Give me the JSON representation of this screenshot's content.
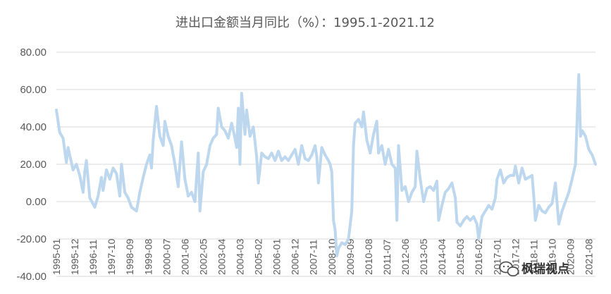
{
  "chart_data": {
    "type": "line",
    "title": "进出口金额当月同比（%）：1995.1-2021.12",
    "xlabel": "",
    "ylabel": "",
    "ylim": [
      -40,
      80
    ],
    "y_ticks": [
      "80.00",
      "60.00",
      "40.00",
      "20.00",
      "0.00",
      "-20.00",
      "-40.00"
    ],
    "x_tick_labels": [
      "1995-01",
      "1995-12",
      "1996-11",
      "1997-10",
      "1998-09",
      "1999-08",
      "2000-07",
      "2001-06",
      "2002-05",
      "2003-04",
      "2004-03",
      "2005-02",
      "2006-01",
      "2006-12",
      "2007-11",
      "2008-10",
      "2009-09",
      "2010-08",
      "2011-07",
      "2012-06",
      "2013-05",
      "2014-04",
      "2015-03",
      "2016-02",
      "2017-01",
      "2017-12",
      "2018-11",
      "2019-10",
      "2020-09",
      "2021-08"
    ],
    "x_start": "1995-01",
    "x_end": "2021-12",
    "grid": "horizontal",
    "legend": "none",
    "series": [
      {
        "name": "",
        "color": "#bdd7ee",
        "points": [
          [
            "1995-01",
            49
          ],
          [
            "1995-03",
            37
          ],
          [
            "1995-05",
            34
          ],
          [
            "1995-07",
            21
          ],
          [
            "1995-08",
            29
          ],
          [
            "1995-09",
            25
          ],
          [
            "1995-11",
            17
          ],
          [
            "1996-01",
            20
          ],
          [
            "1996-03",
            14
          ],
          [
            "1996-05",
            5
          ],
          [
            "1996-06",
            16
          ],
          [
            "1996-07",
            22
          ],
          [
            "1996-09",
            2
          ],
          [
            "1996-12",
            -3
          ],
          [
            "1997-02",
            3
          ],
          [
            "1997-04",
            13
          ],
          [
            "1997-05",
            6
          ],
          [
            "1997-07",
            17
          ],
          [
            "1997-09",
            12
          ],
          [
            "1997-11",
            18
          ],
          [
            "1998-01",
            15
          ],
          [
            "1998-03",
            3
          ],
          [
            "1998-04",
            20
          ],
          [
            "1998-06",
            5
          ],
          [
            "1998-08",
            2
          ],
          [
            "1998-10",
            -3
          ],
          [
            "1999-01",
            -5
          ],
          [
            "1999-03",
            5
          ],
          [
            "1999-05",
            13
          ],
          [
            "1999-07",
            20
          ],
          [
            "1999-09",
            25
          ],
          [
            "1999-10",
            18
          ],
          [
            "1999-11",
            33
          ],
          [
            "2000-01",
            51
          ],
          [
            "2000-03",
            35
          ],
          [
            "2000-05",
            30
          ],
          [
            "2000-06",
            43
          ],
          [
            "2000-08",
            35
          ],
          [
            "2000-10",
            30
          ],
          [
            "2000-12",
            20
          ],
          [
            "2001-02",
            8
          ],
          [
            "2001-04",
            32
          ],
          [
            "2001-06",
            12
          ],
          [
            "2001-08",
            3
          ],
          [
            "2001-10",
            5
          ],
          [
            "2001-12",
            0
          ],
          [
            "2002-02",
            26
          ],
          [
            "2002-03",
            -5
          ],
          [
            "2002-05",
            16
          ],
          [
            "2002-07",
            20
          ],
          [
            "2002-09",
            30
          ],
          [
            "2002-11",
            34
          ],
          [
            "2003-01",
            36
          ],
          [
            "2003-02",
            50
          ],
          [
            "2003-04",
            40
          ],
          [
            "2003-06",
            38
          ],
          [
            "2003-08",
            34
          ],
          [
            "2003-10",
            42
          ],
          [
            "2003-12",
            34
          ],
          [
            "2004-01",
            29
          ],
          [
            "2004-02",
            50
          ],
          [
            "2004-03",
            20
          ],
          [
            "2004-04",
            58
          ],
          [
            "2004-06",
            36
          ],
          [
            "2004-07",
            49
          ],
          [
            "2004-09",
            35
          ],
          [
            "2004-11",
            40
          ],
          [
            "2005-01",
            24
          ],
          [
            "2005-02",
            10
          ],
          [
            "2005-04",
            26
          ],
          [
            "2005-06",
            24
          ],
          [
            "2005-08",
            23
          ],
          [
            "2005-10",
            26
          ],
          [
            "2005-12",
            22
          ],
          [
            "2006-02",
            27
          ],
          [
            "2006-04",
            22
          ],
          [
            "2006-06",
            24
          ],
          [
            "2006-08",
            22
          ],
          [
            "2006-10",
            25
          ],
          [
            "2006-12",
            28
          ],
          [
            "2007-02",
            20
          ],
          [
            "2007-04",
            30
          ],
          [
            "2007-06",
            23
          ],
          [
            "2007-08",
            22
          ],
          [
            "2007-10",
            25
          ],
          [
            "2007-12",
            30
          ],
          [
            "2008-01",
            24
          ],
          [
            "2008-02",
            10
          ],
          [
            "2008-04",
            29
          ],
          [
            "2008-06",
            25
          ],
          [
            "2008-08",
            22
          ],
          [
            "2008-09",
            20
          ],
          [
            "2008-10",
            16
          ],
          [
            "2008-11",
            -10
          ],
          [
            "2008-12",
            -15
          ],
          [
            "2009-01",
            -29
          ],
          [
            "2009-02",
            -25
          ],
          [
            "2009-04",
            -22
          ],
          [
            "2009-06",
            -23
          ],
          [
            "2009-08",
            -20
          ],
          [
            "2009-10",
            -5
          ],
          [
            "2009-11",
            30
          ],
          [
            "2009-12",
            42
          ],
          [
            "2010-02",
            44
          ],
          [
            "2010-04",
            40
          ],
          [
            "2010-05",
            48
          ],
          [
            "2010-07",
            33
          ],
          [
            "2010-09",
            26
          ],
          [
            "2010-11",
            36
          ],
          [
            "2011-01",
            43
          ],
          [
            "2011-02",
            26
          ],
          [
            "2011-04",
            30
          ],
          [
            "2011-06",
            20
          ],
          [
            "2011-08",
            28
          ],
          [
            "2011-10",
            20
          ],
          [
            "2011-12",
            18
          ],
          [
            "2012-01",
            -10
          ],
          [
            "2012-02",
            30
          ],
          [
            "2012-04",
            6
          ],
          [
            "2012-06",
            8
          ],
          [
            "2012-08",
            0
          ],
          [
            "2012-10",
            5
          ],
          [
            "2012-12",
            8
          ],
          [
            "2013-01",
            27
          ],
          [
            "2013-03",
            12
          ],
          [
            "2013-05",
            0
          ],
          [
            "2013-07",
            7
          ],
          [
            "2013-09",
            8
          ],
          [
            "2013-11",
            6
          ],
          [
            "2014-01",
            11
          ],
          [
            "2014-02",
            -10
          ],
          [
            "2014-04",
            -2
          ],
          [
            "2014-06",
            5
          ],
          [
            "2014-08",
            7
          ],
          [
            "2014-10",
            10
          ],
          [
            "2014-12",
            2
          ],
          [
            "2015-01",
            -11
          ],
          [
            "2015-03",
            -13
          ],
          [
            "2015-05",
            -10
          ],
          [
            "2015-07",
            -8
          ],
          [
            "2015-09",
            -10
          ],
          [
            "2015-11",
            -8
          ],
          [
            "2016-01",
            -12
          ],
          [
            "2016-02",
            -20
          ],
          [
            "2016-04",
            -8
          ],
          [
            "2016-06",
            -5
          ],
          [
            "2016-08",
            -2
          ],
          [
            "2016-10",
            -4
          ],
          [
            "2016-12",
            2
          ],
          [
            "2017-01",
            12
          ],
          [
            "2017-03",
            17
          ],
          [
            "2017-05",
            10
          ],
          [
            "2017-07",
            13
          ],
          [
            "2017-09",
            14
          ],
          [
            "2017-11",
            14
          ],
          [
            "2017-12",
            19
          ],
          [
            "2018-02",
            10
          ],
          [
            "2018-04",
            18
          ],
          [
            "2018-06",
            12
          ],
          [
            "2018-08",
            13
          ],
          [
            "2018-10",
            14
          ],
          [
            "2018-11",
            3
          ],
          [
            "2018-12",
            -10
          ],
          [
            "2019-02",
            -2
          ],
          [
            "2019-04",
            -5
          ],
          [
            "2019-06",
            -6
          ],
          [
            "2019-08",
            -3
          ],
          [
            "2019-10",
            -1
          ],
          [
            "2019-12",
            10
          ],
          [
            "2020-02",
            -12
          ],
          [
            "2020-04",
            -5
          ],
          [
            "2020-06",
            0
          ],
          [
            "2020-08",
            5
          ],
          [
            "2020-10",
            12
          ],
          [
            "2020-12",
            20
          ],
          [
            "2021-02",
            68
          ],
          [
            "2021-03",
            35
          ],
          [
            "2021-04",
            38
          ],
          [
            "2021-06",
            35
          ],
          [
            "2021-08",
            28
          ],
          [
            "2021-10",
            25
          ],
          [
            "2021-12",
            20
          ]
        ]
      }
    ]
  },
  "watermark": {
    "text": "枫瑞视点",
    "icon": "wechat-logo-icon"
  }
}
